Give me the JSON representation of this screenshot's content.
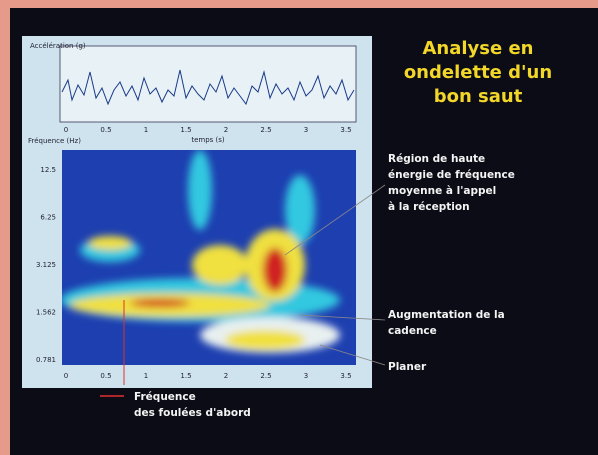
{
  "slide": {
    "title": [
      "Analyse en",
      "ondelette d'un",
      "bon saut"
    ],
    "figure": {
      "top_label": "Accélération (g)",
      "bottom_label": "Fréquence (Hz)",
      "time_label": "temps (s)",
      "y_ticks": [
        "12.5",
        "6.25",
        "3.125",
        "1.562",
        "0.781"
      ],
      "x_ticks": [
        "0",
        "0.5",
        "1",
        "1.5",
        "2",
        "2.5",
        "3",
        "3.5"
      ]
    },
    "annotations": [
      {
        "lines": [
          "Région de haute",
          "énergie de fréquence",
          "moyenne à l'appel",
          "à la réception"
        ]
      },
      {
        "lines": [
          "Augmentation de la",
          "cadence"
        ]
      },
      {
        "lines": [
          "Planer"
        ]
      },
      {
        "lines": [
          "Fréquence",
          "des foulées d'abord"
        ]
      }
    ]
  }
}
